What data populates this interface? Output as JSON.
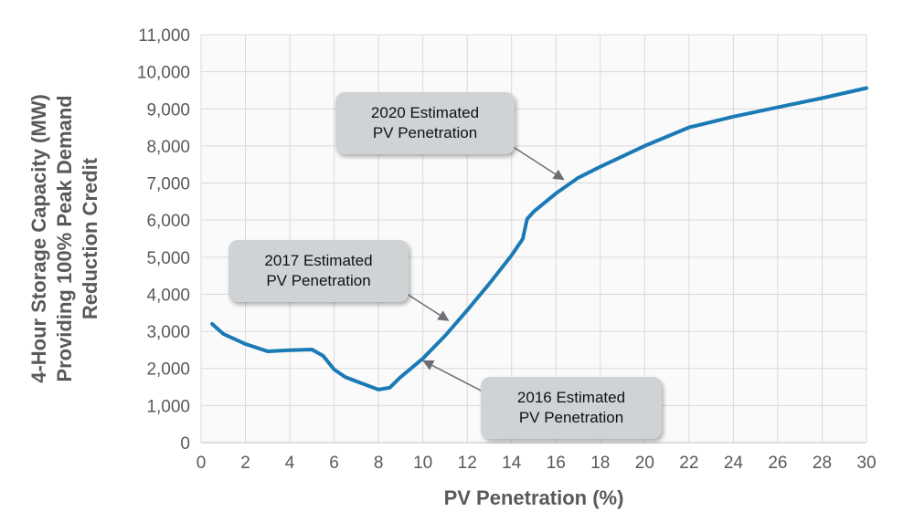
{
  "chart_data": {
    "type": "line",
    "xlabel": "PV Penetration (%)",
    "ylabel": [
      "4-Hour Storage Capacity (MW)",
      "Providing 100% Peak Demand",
      "Reduction Credit"
    ],
    "xlim": [
      0,
      30
    ],
    "ylim": [
      0,
      11000
    ],
    "xticks": [
      0,
      2,
      4,
      6,
      8,
      10,
      12,
      14,
      16,
      18,
      20,
      22,
      24,
      26,
      28,
      30
    ],
    "yticks": [
      "0",
      "1,000",
      "2,000",
      "3,000",
      "4,000",
      "5,000",
      "6,000",
      "7,000",
      "8,000",
      "9,000",
      "10,000",
      "11,000"
    ],
    "grid": true,
    "color": "#1a7ab5",
    "x": [
      0.5,
      1,
      2,
      3,
      4,
      5,
      5.5,
      6,
      6.5,
      7,
      8,
      8.5,
      9,
      10,
      11,
      12,
      13,
      14,
      14.5,
      14.7,
      15,
      16,
      17,
      18,
      20,
      22,
      24,
      26,
      28,
      30
    ],
    "y": [
      3200,
      2930,
      2660,
      2460,
      2490,
      2510,
      2340,
      1970,
      1770,
      1650,
      1430,
      1480,
      1770,
      2270,
      2880,
      3570,
      4290,
      5050,
      5490,
      6030,
      6230,
      6720,
      7140,
      7440,
      8000,
      8500,
      8790,
      9040,
      9290,
      9560
    ],
    "annotations": [
      {
        "line1": "2020 Estimated",
        "line2": "PV Penetration",
        "x": 16.5,
        "y": 7000
      },
      {
        "line1": "2017 Estimated",
        "line2": "PV Penetration",
        "x": 11.3,
        "y": 3200
      },
      {
        "line1": "2016 Estimated",
        "line2": "PV Penetration",
        "x": 10.2,
        "y": 2300
      }
    ]
  }
}
